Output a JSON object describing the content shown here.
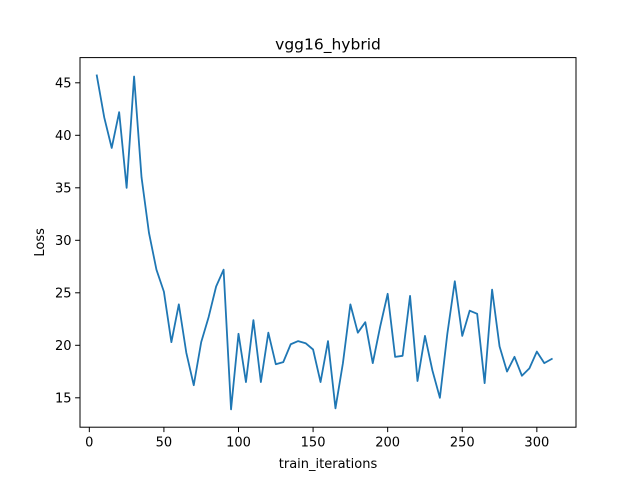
{
  "chart_data": {
    "type": "line",
    "title": "vgg16_hybrid",
    "xlabel": "train_iterations",
    "ylabel": "Loss",
    "xlim": [
      -6.25,
      326.25
    ],
    "ylim": [
      12.2,
      47.4
    ],
    "xticks": [
      0,
      50,
      100,
      150,
      200,
      250,
      300
    ],
    "yticks": [
      15,
      20,
      25,
      30,
      35,
      40,
      45
    ],
    "grid": false,
    "legend": "none",
    "line_color": "#1f77b4",
    "series": [
      {
        "x": [
          5,
          10,
          15,
          20,
          25,
          30,
          35,
          40,
          45,
          50,
          55,
          60,
          65,
          70,
          75,
          80,
          85,
          90,
          95,
          100,
          105,
          110,
          115,
          120,
          125,
          130,
          135,
          140,
          145,
          150,
          155,
          160,
          165,
          170,
          175,
          180,
          185,
          190,
          195,
          200,
          205,
          210,
          215,
          220,
          225,
          230,
          235,
          240,
          245,
          250,
          255,
          260,
          265,
          270,
          275,
          280,
          285,
          290,
          295,
          300,
          305,
          310
        ],
        "values": [
          45.7,
          41.7,
          38.8,
          42.2,
          35.0,
          45.6,
          36.0,
          30.7,
          27.2,
          25.1,
          20.3,
          23.9,
          19.3,
          16.2,
          20.3,
          22.7,
          25.6,
          27.2,
          13.9,
          21.1,
          16.5,
          22.4,
          16.5,
          21.2,
          18.2,
          18.4,
          20.1,
          20.4,
          20.2,
          19.6,
          16.5,
          20.4,
          14.0,
          18.3,
          23.9,
          21.2,
          22.2,
          18.3,
          21.8,
          24.9,
          18.9,
          19.0,
          24.7,
          16.6,
          20.9,
          17.6,
          15.0,
          21.1,
          26.1,
          20.9,
          23.3,
          23.0,
          16.4,
          25.3,
          19.9,
          17.5,
          18.9,
          17.1,
          17.8,
          19.4,
          18.3,
          18.7
        ]
      }
    ]
  }
}
